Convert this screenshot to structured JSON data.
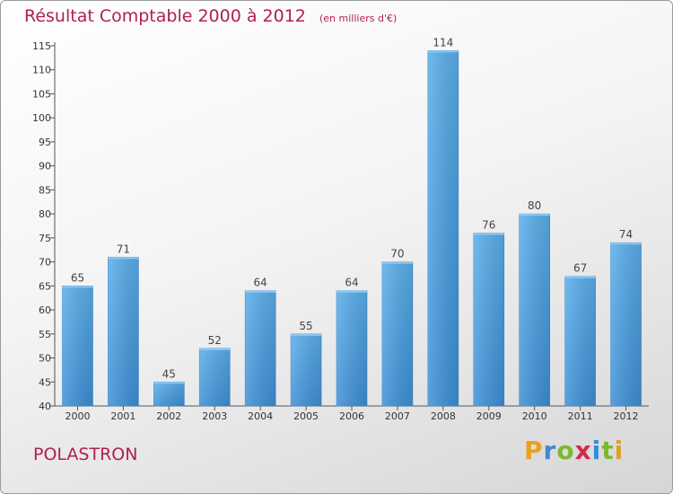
{
  "chart_data": {
    "type": "bar",
    "title": "Résultat Comptable 2000 à 2012",
    "subtitle": "(en milliers d'€)",
    "categories": [
      "2000",
      "2001",
      "2002",
      "2003",
      "2004",
      "2005",
      "2006",
      "2007",
      "2008",
      "2009",
      "2010",
      "2011",
      "2012"
    ],
    "values": [
      65,
      71,
      45,
      52,
      64,
      55,
      64,
      70,
      114,
      76,
      80,
      67,
      74
    ],
    "ylim": [
      40,
      115
    ],
    "yticks": [
      40,
      45,
      50,
      55,
      60,
      65,
      70,
      75,
      80,
      85,
      90,
      95,
      100,
      105,
      110,
      115
    ],
    "grid": false,
    "bar_color": "#3d8fd6",
    "title_color": "#b0204e"
  },
  "footer": {
    "commune": "POLASTRON",
    "brand_letters": [
      {
        "ch": "P",
        "color": "#e8a21c"
      },
      {
        "ch": "r",
        "color": "#3f8ad0"
      },
      {
        "ch": "o",
        "color": "#7cb82f"
      },
      {
        "ch": "x",
        "color": "#d22b4b"
      },
      {
        "ch": "i",
        "color": "#2f8fd8"
      },
      {
        "ch": "t",
        "color": "#7cb82f"
      },
      {
        "ch": "i",
        "color": "#e0a11e"
      }
    ]
  }
}
